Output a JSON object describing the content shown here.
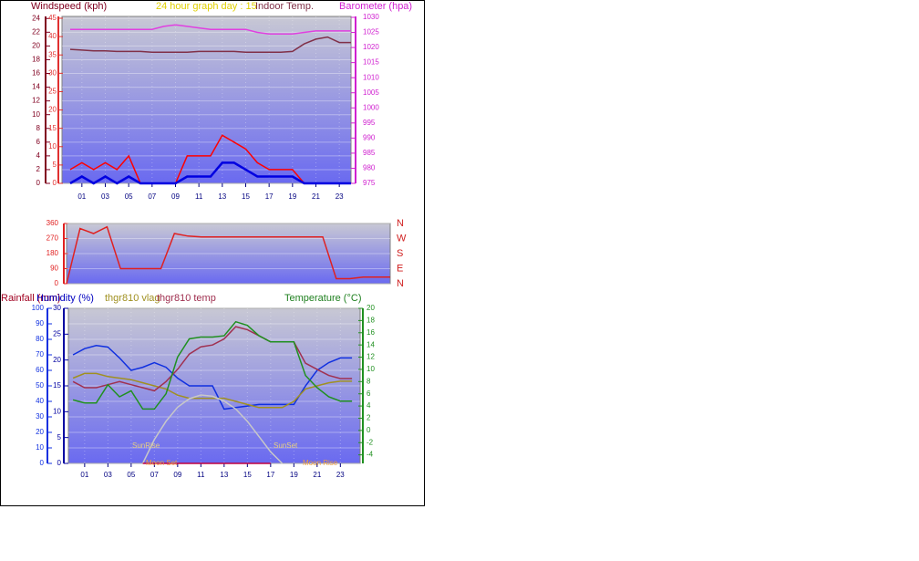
{
  "chart_data": [
    {
      "type": "line",
      "title": "24 hour graph day : 15",
      "y_label": "Windspeed (kph)",
      "y2_label": "Barometer (hpa)",
      "x": [
        0,
        1,
        2,
        3,
        4,
        5,
        6,
        7,
        8,
        9,
        10,
        11,
        12,
        13,
        14,
        15,
        16,
        17,
        18,
        19,
        20,
        21,
        22,
        23,
        24
      ],
      "xlim": [
        -0.7,
        24
      ],
      "ylim": [
        0,
        24.3
      ],
      "y2lim": [
        975,
        1030.3
      ],
      "y3lim": [
        0,
        45.5
      ],
      "xticks": [
        {
          "value": 1,
          "label": "01"
        },
        {
          "value": 3,
          "label": "03"
        },
        {
          "value": 5,
          "label": "05"
        },
        {
          "value": 7,
          "label": "07"
        },
        {
          "value": 9,
          "label": "09"
        },
        {
          "value": 11,
          "label": "11"
        },
        {
          "value": 13,
          "label": "13"
        },
        {
          "value": 15,
          "label": "15"
        },
        {
          "value": 17,
          "label": "17"
        },
        {
          "value": 19,
          "label": "19"
        },
        {
          "value": 21,
          "label": "21"
        },
        {
          "value": 23,
          "label": "23"
        }
      ],
      "yticks": [
        0,
        2,
        4,
        6,
        8,
        10,
        12,
        14,
        16,
        18,
        20,
        22,
        24
      ],
      "y3ticks": [
        0,
        5,
        10,
        15,
        20,
        25,
        30,
        35,
        40,
        45
      ],
      "y2ticks": [
        975,
        980,
        985,
        990,
        995,
        1000,
        1005,
        1010,
        1015,
        1020,
        1025,
        1030
      ],
      "grid": true,
      "series": [
        {
          "name": "Indoor Temp.",
          "color": "#803048",
          "values": [
            19.5,
            19.4,
            19.3,
            19.3,
            19.2,
            19.2,
            19.2,
            19.1,
            19.1,
            19.1,
            19.1,
            19.2,
            19.2,
            19.2,
            19.2,
            19.1,
            19.1,
            19.1,
            19.1,
            19.2,
            20.3,
            21,
            21.3,
            20.5,
            20.5
          ]
        },
        {
          "color": "#e040e0",
          "axis": "y2",
          "values": [
            1026,
            1026,
            1026,
            1026,
            1026,
            1026,
            1026,
            1026,
            1027,
            1027.5,
            1027,
            1026.5,
            1026,
            1026,
            1026,
            1026,
            1025,
            1024.5,
            1024.5,
            1024.5,
            1025,
            1025.5,
            1025.5,
            1025.5,
            1025.5
          ]
        },
        {
          "color": "#ff0000",
          "values": [
            2,
            3,
            2,
            3,
            2,
            4,
            0,
            0,
            0,
            0,
            4,
            4,
            4,
            7,
            6,
            5,
            3,
            2,
            2,
            2,
            0,
            0,
            0,
            0,
            0
          ]
        },
        {
          "color": "#0000e0",
          "values": [
            0,
            1,
            0,
            1,
            0,
            1,
            0,
            0,
            0,
            0,
            1,
            1,
            1,
            3,
            3,
            2,
            1,
            1,
            1,
            1,
            0,
            0,
            0,
            0,
            0
          ]
        }
      ]
    },
    {
      "type": "line",
      "x": [
        0,
        1,
        2,
        3,
        4,
        5,
        6,
        7,
        8,
        9,
        10,
        11,
        12,
        13,
        14,
        15,
        16,
        17,
        18,
        19,
        20,
        21,
        22,
        23,
        24
      ],
      "xlim": [
        0,
        24
      ],
      "ylim": [
        0,
        360
      ],
      "yticks": [
        0,
        90,
        180,
        270,
        360
      ],
      "grid": true,
      "direction_labels": [
        "N",
        "W",
        "S",
        "E",
        "N"
      ],
      "series": [
        {
          "color": "#e02020",
          "values": [
            0,
            330,
            300,
            340,
            90,
            90,
            90,
            90,
            300,
            285,
            280,
            280,
            280,
            280,
            280,
            280,
            280,
            280,
            280,
            280,
            30,
            30,
            40,
            40,
            40
          ]
        }
      ]
    },
    {
      "type": "line",
      "y_label": "Humidity (%)",
      "y3_label": "Rainfall (mm)",
      "y2_label": "Temperature (°C)",
      "x": [
        0,
        1,
        2,
        3,
        4,
        5,
        6,
        7,
        8,
        9,
        10,
        11,
        12,
        13,
        14,
        15,
        16,
        17,
        18,
        19,
        20,
        21,
        22,
        23,
        24
      ],
      "xlim": [
        -0.4,
        24.7
      ],
      "ylim": [
        0,
        100
      ],
      "y3lim": [
        0,
        30
      ],
      "y2lim": [
        -5.4,
        20
      ],
      "xticks": [
        {
          "value": 1,
          "label": "01"
        },
        {
          "value": 3,
          "label": "03"
        },
        {
          "value": 5,
          "label": "05"
        },
        {
          "value": 7,
          "label": "07"
        },
        {
          "value": 9,
          "label": "09"
        },
        {
          "value": 11,
          "label": "11"
        },
        {
          "value": 13,
          "label": "13"
        },
        {
          "value": 15,
          "label": "15"
        },
        {
          "value": 17,
          "label": "17"
        },
        {
          "value": 19,
          "label": "19"
        },
        {
          "value": 21,
          "label": "21"
        },
        {
          "value": 23,
          "label": "23"
        }
      ],
      "yticks": [
        0,
        10,
        20,
        30,
        40,
        50,
        60,
        70,
        80,
        90,
        100
      ],
      "y3ticks": [
        0,
        5,
        10,
        15,
        20,
        25,
        30
      ],
      "y2ticks": [
        -4,
        -2,
        0,
        2,
        4,
        6,
        8,
        10,
        12,
        14,
        16,
        18,
        20
      ],
      "grid": true,
      "annotations": [
        "SunRise",
        "Moon Set",
        "SunSet",
        "Moon Rise"
      ],
      "series": [
        {
          "color": "#1030e0",
          "values": [
            70,
            74,
            76,
            75,
            68,
            60,
            62,
            65,
            62,
            55,
            50,
            50,
            50,
            35,
            36,
            37,
            38,
            38,
            38,
            38,
            50,
            60,
            65,
            68,
            68
          ]
        },
        {
          "name": "thgr810 vlag",
          "color": "#a09020",
          "values": [
            55,
            58,
            58,
            56,
            55,
            54,
            52,
            50,
            48,
            44,
            42,
            42,
            42,
            42,
            40,
            38,
            36,
            36,
            36,
            40,
            48,
            50,
            52,
            53,
            53
          ]
        },
        {
          "name": "thgr810 temp",
          "color": "#a03050",
          "axis": "y2",
          "values": [
            8,
            7,
            7,
            7.5,
            8,
            7.5,
            7,
            6.5,
            8,
            10,
            12.5,
            13.7,
            14,
            15,
            17,
            16.5,
            15.5,
            14.5,
            14.5,
            14.5,
            11,
            10,
            9,
            8.5,
            8.5
          ]
        },
        {
          "color": "#209020",
          "axis": "y2",
          "values": [
            5,
            4.5,
            4.5,
            7.5,
            5.5,
            6.5,
            3.5,
            3.5,
            6,
            12,
            15,
            15.3,
            15.3,
            15.5,
            17.8,
            17.2,
            15.5,
            14.5,
            14.5,
            14.5,
            9,
            7,
            5.5,
            4.8,
            4.8
          ]
        },
        {
          "color": "#c8c8c8",
          "axis": "y2",
          "values": [
            null,
            null,
            null,
            null,
            null,
            null,
            -5.4,
            -1.5,
            1.5,
            3.8,
            5.2,
            5.8,
            5.6,
            4.8,
            3.5,
            1.5,
            -1,
            -3.5,
            -5.4,
            null,
            null,
            null,
            null,
            null,
            null
          ]
        },
        {
          "color": "#c00040",
          "axis": "y3",
          "values": [
            null,
            null,
            null,
            null,
            null,
            null,
            0,
            0,
            0,
            0,
            0,
            0,
            0,
            0,
            0,
            0,
            0,
            0,
            null,
            null,
            null,
            null,
            null,
            null,
            null
          ]
        }
      ]
    }
  ]
}
